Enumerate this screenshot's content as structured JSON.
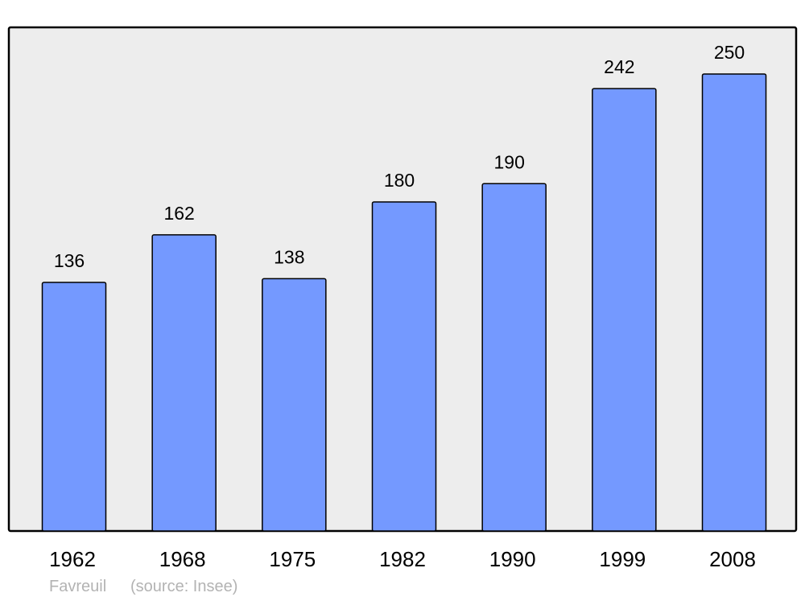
{
  "chart_data": {
    "type": "bar",
    "categories": [
      "1962",
      "1968",
      "1975",
      "1982",
      "1990",
      "1999",
      "2008"
    ],
    "values": [
      136,
      162,
      138,
      180,
      190,
      242,
      250
    ],
    "title": "",
    "xlabel": "",
    "ylabel": "",
    "ylim": [
      0,
      275.5
    ],
    "grid": false,
    "data_labels": true,
    "colors": {
      "bar": "#7499ff",
      "bar_stroke": "#000000",
      "plot_background": "#ededed"
    }
  },
  "caption": {
    "place": "Favreuil",
    "source": "(source: Insee)"
  }
}
